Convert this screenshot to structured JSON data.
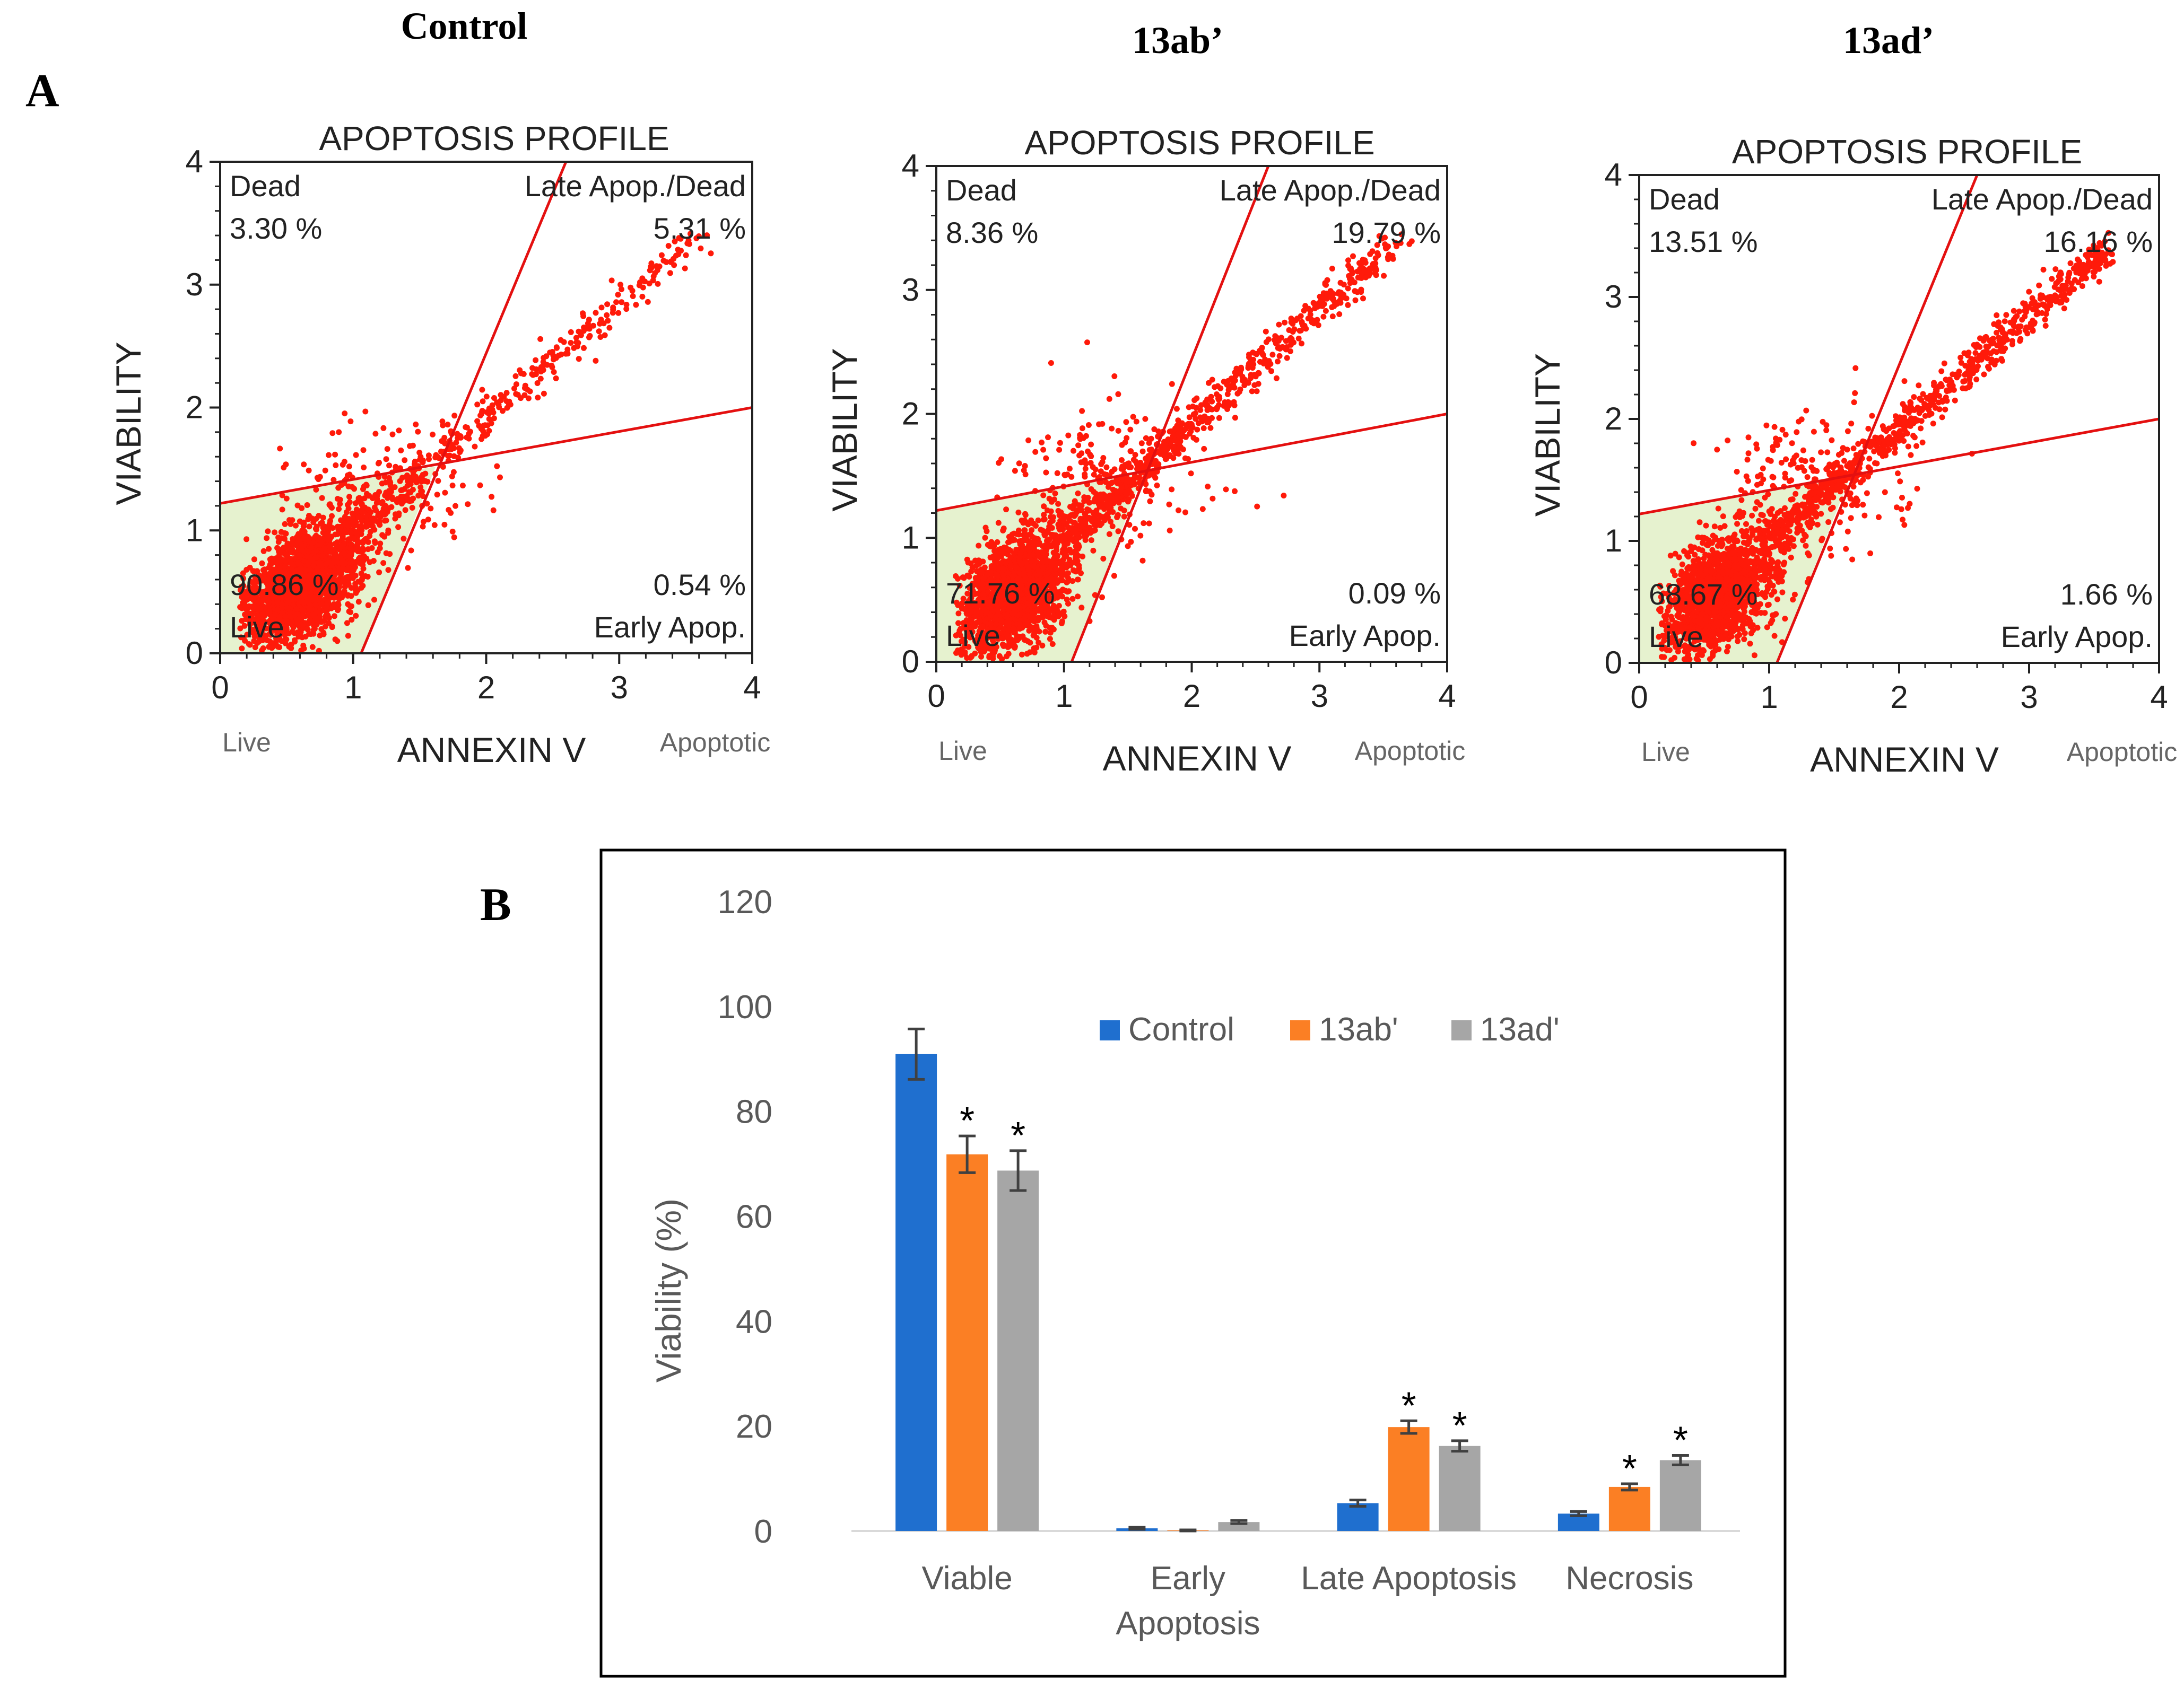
{
  "panel_a_label": "A",
  "panel_b_label": "B",
  "colors": {
    "gate_line": "#e41010",
    "dot": "#ff1a0a",
    "live_fill": "#e6f2cf",
    "control": "#1f6fcf",
    "13ab": "#fb7f24",
    "13ad": "#a6a6a6",
    "error_bar": "#404040"
  },
  "chart_data": [
    {
      "type": "scatter",
      "sample_title": "Control",
      "title": "APOPTOSIS PROFILE",
      "xlabel": "ANNEXIN V",
      "ylabel": "VIABILITY",
      "x_ticks": [
        "0",
        "1",
        "2",
        "3",
        "4"
      ],
      "y_ticks": [
        "0",
        "1",
        "2",
        "3",
        "4"
      ],
      "xlim": [
        0,
        4
      ],
      "ylim": [
        0,
        4
      ],
      "x_end_labels": {
        "left": "Live",
        "right": "Apoptotic"
      },
      "quadrants": {
        "dead": {
          "label": "Dead",
          "value": "3.30 %"
        },
        "late": {
          "label": "Late Apop./Dead",
          "value": "5.31 %"
        },
        "live": {
          "label": "Live",
          "value": "90.86 %"
        },
        "early": {
          "label": "Early Apop.",
          "value": "0.54 %"
        }
      }
    },
    {
      "type": "scatter",
      "sample_title": "13ab’",
      "title": "APOPTOSIS PROFILE",
      "xlabel": "ANNEXIN V",
      "ylabel": "VIABILITY",
      "x_ticks": [
        "0",
        "1",
        "2",
        "3",
        "4"
      ],
      "y_ticks": [
        "0",
        "1",
        "2",
        "3",
        "4"
      ],
      "xlim": [
        0,
        4
      ],
      "ylim": [
        0,
        4
      ],
      "x_end_labels": {
        "left": "Live",
        "right": "Apoptotic"
      },
      "quadrants": {
        "dead": {
          "label": "Dead",
          "value": "8.36 %"
        },
        "late": {
          "label": "Late Apop./Dead",
          "value": "19.79 %"
        },
        "live": {
          "label": "Live",
          "value": "71.76 %"
        },
        "early": {
          "label": "Early Apop.",
          "value": "0.09 %"
        }
      }
    },
    {
      "type": "scatter",
      "sample_title": "13ad’",
      "title": "APOPTOSIS PROFILE",
      "xlabel": "ANNEXIN V",
      "ylabel": "VIABILITY",
      "x_ticks": [
        "0",
        "1",
        "2",
        "3",
        "4"
      ],
      "y_ticks": [
        "0",
        "1",
        "2",
        "3",
        "4"
      ],
      "xlim": [
        0,
        4
      ],
      "ylim": [
        0,
        4
      ],
      "x_end_labels": {
        "left": "Live",
        "right": "Apoptotic"
      },
      "quadrants": {
        "dead": {
          "label": "Dead",
          "value": "13.51 %"
        },
        "late": {
          "label": "Late Apop./Dead",
          "value": "16.16 %"
        },
        "live": {
          "label": "Live",
          "value": "68.67 %"
        },
        "early": {
          "label": "Early Apop.",
          "value": "1.66 %"
        }
      }
    },
    {
      "type": "bar",
      "ylabel": "Viability (%)",
      "xlabel": "",
      "ylim": [
        0,
        120
      ],
      "y_ticks": [
        "0",
        "20",
        "40",
        "60",
        "80",
        "100",
        "120"
      ],
      "categories": [
        [
          "Viable"
        ],
        [
          "Early",
          "Apoptosis"
        ],
        [
          "Late Apoptosis"
        ],
        [
          "Necrosis"
        ]
      ],
      "series": [
        {
          "name": "Control",
          "values": [
            90.9,
            0.5,
            5.3,
            3.3
          ],
          "errors": [
            4.8,
            0.2,
            0.6,
            0.4
          ],
          "significant": [
            false,
            false,
            false,
            false
          ]
        },
        {
          "name": "13ab'",
          "values": [
            71.8,
            0.1,
            19.8,
            8.4
          ],
          "errors": [
            3.5,
            0.1,
            1.2,
            0.6
          ],
          "significant": [
            true,
            false,
            true,
            true
          ]
        },
        {
          "name": "13ad'",
          "values": [
            68.7,
            1.7,
            16.2,
            13.5
          ],
          "errors": [
            3.8,
            0.3,
            1.0,
            0.9
          ],
          "significant": [
            true,
            false,
            true,
            true
          ]
        }
      ],
      "significance_marker": "*",
      "legend_position": "top-center"
    }
  ]
}
